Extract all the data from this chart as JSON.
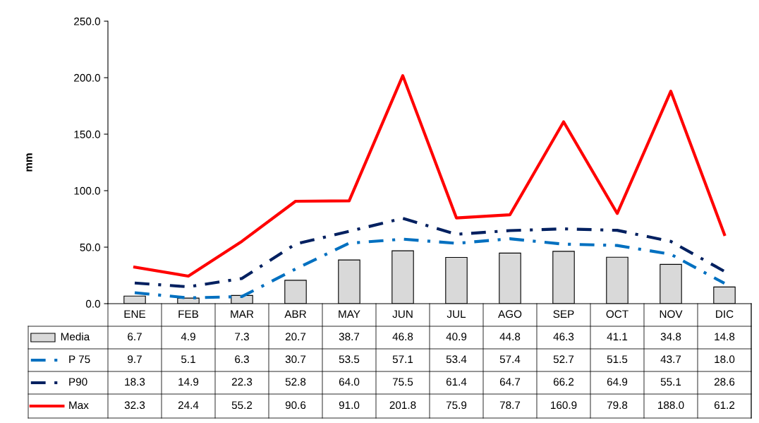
{
  "chart_data": {
    "type": "bar",
    "ylabel": "mm",
    "categories": [
      "ENE",
      "FEB",
      "MAR",
      "ABR",
      "MAY",
      "JUN",
      "JUL",
      "AGO",
      "SEP",
      "OCT",
      "NOV",
      "DIC"
    ],
    "series": [
      {
        "name": "Media",
        "color": "#d9d9d9",
        "values": [
          6.7,
          4.9,
          7.3,
          20.7,
          38.7,
          46.8,
          40.9,
          44.8,
          46.3,
          41.1,
          34.8,
          14.8
        ],
        "value_labels": [
          "6.7",
          "4.9",
          "7.3",
          "20.7",
          "38.7",
          "46.8",
          "40.9",
          "44.8",
          "46.3",
          "41.1",
          "34.8",
          "14.8"
        ]
      },
      {
        "name": "P 75",
        "type": "line",
        "color": "#0070c0",
        "line_style": "dashdot",
        "values": [
          9.7,
          5.1,
          6.3,
          30.7,
          53.5,
          57.1,
          53.4,
          57.4,
          52.7,
          51.5,
          43.7,
          18.0
        ],
        "value_labels": [
          "9.7",
          "5.1",
          "6.3",
          "30.7",
          "53.5",
          "57.1",
          "53.4",
          "57.4",
          "52.7",
          "51.5",
          "43.7",
          "18.0"
        ]
      },
      {
        "name": "P90",
        "type": "line",
        "color": "#002060",
        "line_style": "dashdot",
        "values": [
          18.3,
          14.9,
          22.3,
          52.8,
          64.0,
          75.5,
          61.4,
          64.7,
          66.2,
          64.9,
          55.1,
          28.6
        ],
        "value_labels": [
          "18.3",
          "14.9",
          "22.3",
          "52.8",
          "64.0",
          "75.5",
          "61.4",
          "64.7",
          "66.2",
          "64.9",
          "55.1",
          "28.6"
        ]
      },
      {
        "name": "Max",
        "type": "line",
        "color": "#ff0000",
        "line_style": "solid",
        "values": [
          32.3,
          24.4,
          55.2,
          90.6,
          91.0,
          201.8,
          75.9,
          78.7,
          160.9,
          79.8,
          188.0,
          61.2
        ],
        "value_labels": [
          "32.3",
          "24.4",
          "55.2",
          "90.6",
          "91.0",
          "201.8",
          "75.9",
          "78.7",
          "160.9",
          "79.8",
          "188.0",
          "61.2"
        ]
      }
    ],
    "ylim": [
      0,
      250
    ],
    "yticks": [
      {
        "value": 0,
        "label": "0.0"
      },
      {
        "value": 50,
        "label": "50.0"
      },
      {
        "value": 100,
        "label": "100.0"
      },
      {
        "value": 150,
        "label": "150.0"
      },
      {
        "value": 200,
        "label": "200.0"
      },
      {
        "value": 250,
        "label": "250.0"
      }
    ],
    "grid": false,
    "legend": "bottom left",
    "marker": "none"
  }
}
